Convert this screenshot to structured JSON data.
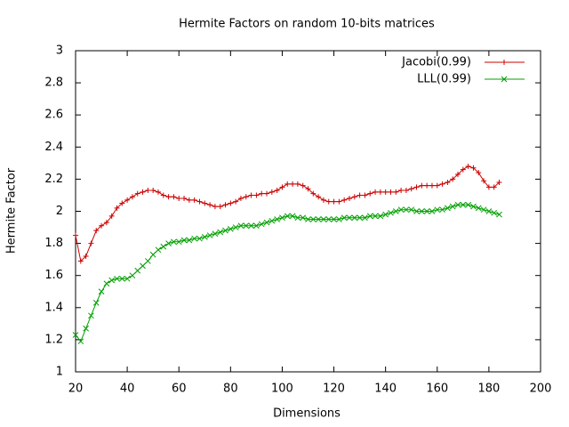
{
  "chart_data": {
    "type": "line",
    "title": "Hermite Factors on random 10-bits matrices",
    "x_label": "Dimensions",
    "y_label": "Hermite Factor",
    "x": [
      20,
      22,
      24,
      26,
      28,
      30,
      32,
      34,
      36,
      38,
      40,
      42,
      44,
      46,
      48,
      50,
      52,
      54,
      56,
      58,
      60,
      62,
      64,
      66,
      68,
      70,
      72,
      74,
      76,
      78,
      80,
      82,
      84,
      86,
      88,
      90,
      92,
      94,
      96,
      98,
      100,
      102,
      104,
      106,
      108,
      110,
      112,
      114,
      116,
      118,
      120,
      122,
      124,
      126,
      128,
      130,
      132,
      134,
      136,
      138,
      140,
      142,
      144,
      146,
      148,
      150,
      152,
      154,
      156,
      158,
      160,
      162,
      164,
      166,
      168,
      170,
      172,
      174,
      176,
      178,
      180,
      182,
      184
    ],
    "series": [
      {
        "name": "Jacobi(0.99)",
        "color": "#cc0000",
        "marker": "plus",
        "values": [
          1.85,
          1.69,
          1.72,
          1.8,
          1.88,
          1.91,
          1.93,
          1.97,
          2.02,
          2.05,
          2.07,
          2.09,
          2.11,
          2.12,
          2.13,
          2.13,
          2.12,
          2.1,
          2.09,
          2.09,
          2.08,
          2.08,
          2.07,
          2.07,
          2.06,
          2.05,
          2.04,
          2.03,
          2.03,
          2.04,
          2.05,
          2.06,
          2.08,
          2.09,
          2.1,
          2.1,
          2.11,
          2.11,
          2.12,
          2.13,
          2.15,
          2.17,
          2.17,
          2.17,
          2.16,
          2.14,
          2.11,
          2.09,
          2.07,
          2.06,
          2.06,
          2.06,
          2.07,
          2.08,
          2.09,
          2.1,
          2.1,
          2.11,
          2.12,
          2.12,
          2.12,
          2.12,
          2.12,
          2.13,
          2.13,
          2.14,
          2.15,
          2.16,
          2.16,
          2.16,
          2.16,
          2.17,
          2.18,
          2.2,
          2.23,
          2.26,
          2.28,
          2.27,
          2.24,
          2.19,
          2.15,
          2.15,
          2.18
        ]
      },
      {
        "name": "LLL(0.99)",
        "color": "#00a000",
        "marker": "cross",
        "values": [
          1.23,
          1.19,
          1.27,
          1.35,
          1.43,
          1.5,
          1.55,
          1.57,
          1.58,
          1.58,
          1.58,
          1.6,
          1.63,
          1.66,
          1.69,
          1.73,
          1.76,
          1.78,
          1.8,
          1.81,
          1.81,
          1.82,
          1.82,
          1.83,
          1.83,
          1.84,
          1.85,
          1.86,
          1.87,
          1.88,
          1.89,
          1.9,
          1.91,
          1.91,
          1.91,
          1.91,
          1.92,
          1.93,
          1.94,
          1.95,
          1.96,
          1.97,
          1.97,
          1.96,
          1.96,
          1.95,
          1.95,
          1.95,
          1.95,
          1.95,
          1.95,
          1.95,
          1.96,
          1.96,
          1.96,
          1.96,
          1.96,
          1.97,
          1.97,
          1.97,
          1.98,
          1.99,
          2.0,
          2.01,
          2.01,
          2.01,
          2.0,
          2.0,
          2.0,
          2.0,
          2.01,
          2.01,
          2.02,
          2.03,
          2.04,
          2.04,
          2.04,
          2.03,
          2.02,
          2.01,
          2.0,
          1.99,
          1.98
        ]
      }
    ],
    "xlim": [
      20,
      200
    ],
    "xticks": [
      20,
      40,
      60,
      80,
      100,
      120,
      140,
      160,
      180,
      200
    ],
    "ylim": [
      1,
      3
    ],
    "yticks": [
      1,
      {
        "value": 1.2,
        "label": "1.2"
      },
      {
        "value": 1.4,
        "label": "1.4"
      },
      {
        "value": 1.6,
        "label": "1.6"
      },
      {
        "value": 1.8,
        "label": "1.8"
      },
      2,
      {
        "value": 2.2,
        "label": "2.2"
      },
      {
        "value": 2.4,
        "label": "2.4"
      },
      {
        "value": 2.6,
        "label": "2.6"
      },
      {
        "value": 2.8,
        "label": "2.8"
      },
      3
    ],
    "grid": false,
    "legend": "upper right"
  }
}
